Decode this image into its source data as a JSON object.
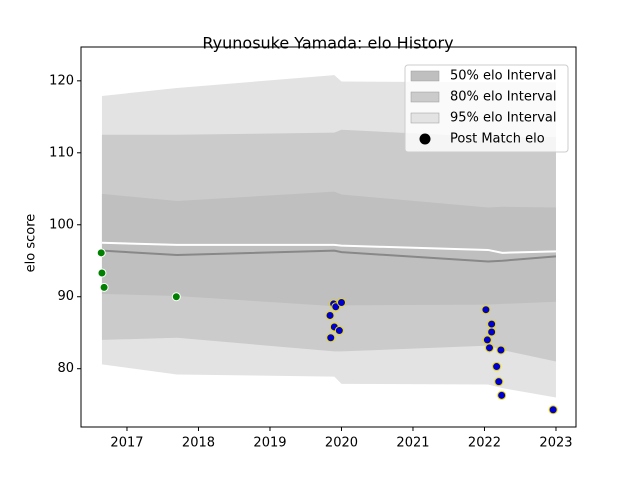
{
  "chart_data": {
    "type": "band",
    "title": "Ryunosuke Yamada: elo History",
    "ylabel": "elo score",
    "xlim": [
      2016.357,
      2023.28
    ],
    "ylim": [
      71.9,
      124.7
    ],
    "xticks": [
      2017,
      2018,
      2019,
      2020,
      2021,
      2022,
      2023
    ],
    "yticks": [
      80,
      90,
      100,
      110,
      120
    ],
    "legend": "upper right",
    "x": [
      2016.65,
      2017.7,
      2019.9,
      2020.0,
      2022.05,
      2022.25,
      2023.0
    ],
    "bands": [
      {
        "name": "95% elo Interval",
        "color": "#e3e3e3",
        "lower": [
          80.6,
          79.2,
          78.9,
          77.9,
          77.8,
          77.3,
          76.0
        ],
        "upper": [
          117.9,
          119.0,
          120.8,
          119.9,
          119.8,
          119.8,
          119.8
        ]
      },
      {
        "name": "80% elo Interval",
        "color": "#cbcbcb",
        "lower": [
          84.0,
          84.3,
          82.4,
          82.4,
          83.2,
          82.6,
          81.0
        ],
        "upper": [
          112.5,
          112.5,
          112.8,
          113.2,
          112.2,
          112.2,
          112.2
        ]
      },
      {
        "name": "50% elo Interval",
        "color": "#bfbfbf",
        "lower": [
          90.4,
          90.1,
          88.7,
          88.8,
          88.9,
          89.0,
          89.3
        ],
        "upper": [
          104.3,
          103.3,
          104.6,
          104.2,
          102.4,
          102.5,
          102.4
        ]
      }
    ],
    "legend_order": [
      2,
      1,
      0
    ],
    "lines": [
      {
        "color": "#888888",
        "values": [
          96.4,
          95.8,
          96.4,
          96.2,
          94.9,
          95.0,
          95.6
        ]
      },
      {
        "color": "#ffffff",
        "values": [
          97.5,
          97.2,
          97.2,
          97.1,
          96.5,
          96.1,
          96.3
        ]
      }
    ],
    "points": {
      "name": "Post Match elo",
      "legend_color": "#000000",
      "x": [
        2016.64,
        2016.65,
        2016.68,
        2017.69,
        2019.85,
        2019.84,
        2019.89,
        2019.92,
        2019.9,
        2019.97,
        2020.0,
        2022.02,
        2022.1,
        2022.1,
        2022.04,
        2022.07,
        2022.23,
        2022.17,
        2022.2,
        2022.24,
        2022.96
      ],
      "values": [
        96.1,
        93.3,
        91.3,
        90.0,
        84.3,
        87.4,
        89.0,
        88.6,
        85.8,
        85.3,
        89.2,
        88.2,
        86.2,
        85.1,
        84.0,
        82.9,
        82.6,
        80.3,
        78.2,
        76.3,
        74.3
      ],
      "colors": [
        "#008000",
        "#008000",
        "#008000",
        "#008000",
        "#0000cc",
        "#0000cc",
        "#0000cc",
        "#0000cc",
        "#0000cc",
        "#0000cc",
        "#0000cc",
        "#0000cc",
        "#0000cc",
        "#0000cc",
        "#0000cc",
        "#0000cc",
        "#0000cc",
        "#0000cc",
        "#0000cc",
        "#0000cc",
        "#0000cc"
      ],
      "edgecolors": [
        "#ffffff",
        "#ffffff",
        "#ffffff",
        "#ffffff",
        "#e8d800",
        "#e8d800",
        "#e8d800",
        "#e8d800",
        "#e8d800",
        "#e8d800",
        "#e8d800",
        "#e8d800",
        "#e8d800",
        "#e8d800",
        "#e8d800",
        "#e8d800",
        "#e8d800",
        "#e8d800",
        "#e8d800",
        "#e8d800",
        "#e8d800"
      ]
    }
  }
}
